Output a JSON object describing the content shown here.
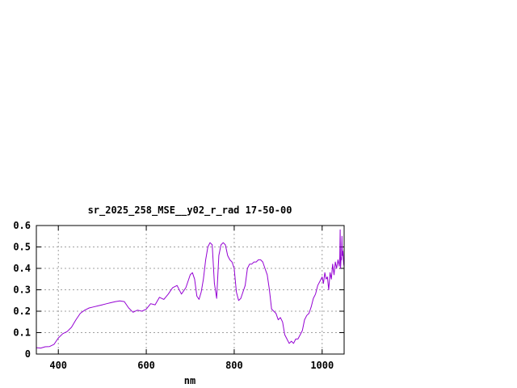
{
  "chart_data": {
    "type": "line",
    "title": "sr_2025_258_MSE__y02_r_rad 17-50-00",
    "xlabel": "nm",
    "ylabel": "",
    "xlim": [
      350,
      1050
    ],
    "ylim": [
      0,
      0.6
    ],
    "xticks": [
      400,
      600,
      800,
      1000
    ],
    "xtick_labels": [
      "400",
      "600",
      "800",
      "1000"
    ],
    "yticks": [
      0,
      0.1,
      0.2,
      0.3,
      0.4,
      0.5,
      0.6
    ],
    "ytick_labels": [
      "0",
      "0.1",
      "0.2",
      "0.3",
      "0.4",
      "0.5",
      "0.6"
    ],
    "grid": true,
    "colors": {
      "line": "#9400d3",
      "grid": "#a0a0a0",
      "frame": "#000000"
    },
    "series": [
      {
        "name": "",
        "x": [
          350,
          360,
          370,
          380,
          390,
          400,
          410,
          420,
          430,
          440,
          450,
          460,
          470,
          480,
          490,
          500,
          510,
          520,
          530,
          540,
          550,
          560,
          570,
          580,
          590,
          600,
          610,
          620,
          630,
          640,
          650,
          660,
          670,
          680,
          690,
          700,
          705,
          710,
          715,
          720,
          725,
          730,
          735,
          740,
          745,
          750,
          755,
          760,
          765,
          770,
          775,
          780,
          785,
          790,
          795,
          800,
          805,
          810,
          815,
          820,
          825,
          830,
          835,
          840,
          845,
          850,
          855,
          860,
          865,
          870,
          875,
          880,
          885,
          890,
          895,
          900,
          905,
          910,
          915,
          920,
          925,
          930,
          935,
          940,
          945,
          950,
          955,
          960,
          965,
          970,
          975,
          980,
          985,
          990,
          995,
          1000,
          1003,
          1006,
          1009,
          1012,
          1015,
          1018,
          1021,
          1024,
          1027,
          1030,
          1033,
          1036,
          1039,
          1040,
          1041,
          1042,
          1043,
          1044,
          1045,
          1046,
          1047,
          1048,
          1049,
          1050
        ],
        "y": [
          0.03,
          0.028,
          0.034,
          0.035,
          0.045,
          0.075,
          0.095,
          0.105,
          0.125,
          0.16,
          0.19,
          0.205,
          0.215,
          0.22,
          0.225,
          0.23,
          0.235,
          0.24,
          0.245,
          0.248,
          0.245,
          0.215,
          0.195,
          0.205,
          0.2,
          0.21,
          0.235,
          0.23,
          0.265,
          0.255,
          0.28,
          0.31,
          0.32,
          0.28,
          0.31,
          0.37,
          0.38,
          0.35,
          0.27,
          0.255,
          0.29,
          0.35,
          0.44,
          0.5,
          0.52,
          0.51,
          0.33,
          0.26,
          0.46,
          0.51,
          0.52,
          0.51,
          0.46,
          0.44,
          0.43,
          0.4,
          0.29,
          0.25,
          0.26,
          0.29,
          0.32,
          0.4,
          0.42,
          0.42,
          0.43,
          0.43,
          0.44,
          0.44,
          0.43,
          0.4,
          0.37,
          0.3,
          0.21,
          0.2,
          0.19,
          0.16,
          0.17,
          0.15,
          0.09,
          0.07,
          0.05,
          0.06,
          0.05,
          0.07,
          0.07,
          0.09,
          0.11,
          0.16,
          0.18,
          0.19,
          0.22,
          0.26,
          0.28,
          0.32,
          0.34,
          0.36,
          0.33,
          0.38,
          0.35,
          0.36,
          0.3,
          0.38,
          0.35,
          0.42,
          0.37,
          0.43,
          0.4,
          0.44,
          0.41,
          0.45,
          0.58,
          0.4,
          0.45,
          0.44,
          0.55,
          0.46,
          0.48,
          0.45,
          0.42,
          0.41
        ]
      }
    ]
  }
}
